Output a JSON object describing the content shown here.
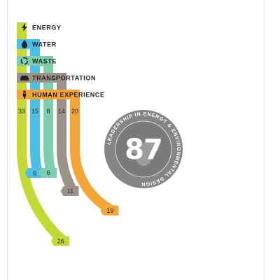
{
  "chart_data": {
    "type": "radial-bar",
    "title": "",
    "center": {
      "score": "87",
      "badge_text": "LEADERSHIP IN ENERGY & ENVIRONMENTAL DESIGN"
    },
    "categories": [
      {
        "name": "ENERGY",
        "icon": "lightning-bolt-icon",
        "color": "#c5d935",
        "max": 33,
        "value": 26,
        "max_highlight": false
      },
      {
        "name": "WATER",
        "icon": "water-drop-icon",
        "color": "#4bbfe8",
        "max": 15,
        "value": 6,
        "max_highlight": true
      },
      {
        "name": "WASTE",
        "icon": "recycle-icon",
        "color": "#7ccfab",
        "max": 8,
        "value": 6,
        "max_highlight": false
      },
      {
        "name": "TRANSPORTATION",
        "icon": "car-icon",
        "color": "#9b9389",
        "max": 14,
        "value": 11,
        "max_highlight": false
      },
      {
        "name": "HUMAN EXPERIENCE",
        "icon": "person-icon",
        "color": "#f5a535",
        "max": 20,
        "value": 19,
        "max_highlight": false
      }
    ],
    "track_color": "#e3e3e3"
  }
}
